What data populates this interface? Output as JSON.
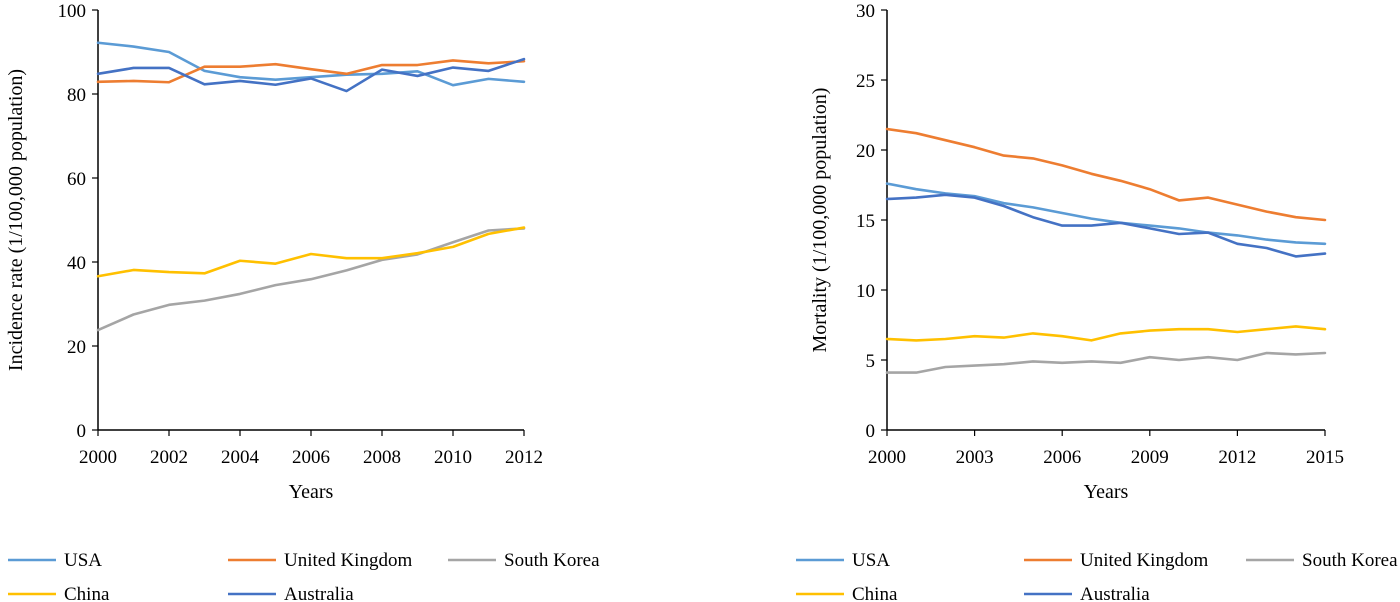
{
  "chart_data": [
    {
      "type": "line",
      "title": "",
      "xlabel": "Years",
      "ylabel": "Incidence rate (1/100,000 population)",
      "xlim": [
        2000,
        2012
      ],
      "ylim": [
        0,
        100
      ],
      "x_ticks": [
        "2000",
        "2002",
        "2004",
        "2006",
        "2008",
        "2010",
        "2012"
      ],
      "y_ticks": [
        "0",
        "20",
        "40",
        "60",
        "80",
        "100"
      ],
      "grid": false,
      "legend": "bottom",
      "x": [
        2000,
        2001,
        2002,
        2003,
        2004,
        2005,
        2006,
        2007,
        2008,
        2009,
        2010,
        2011,
        2012
      ],
      "series": [
        {
          "name": "USA",
          "color": "#5B9BD5",
          "values": [
            92.2,
            91.3,
            90.0,
            85.5,
            84.0,
            83.4,
            84.0,
            84.6,
            84.8,
            85.4,
            82.1,
            83.6,
            82.9
          ]
        },
        {
          "name": "United Kingdom",
          "color": "#ED7D31",
          "values": [
            82.9,
            83.1,
            82.8,
            86.5,
            86.5,
            87.1,
            85.9,
            84.8,
            86.9,
            86.9,
            88.0,
            87.3,
            87.8
          ]
        },
        {
          "name": "South Korea",
          "color": "#A5A5A5",
          "values": [
            23.8,
            27.5,
            29.8,
            30.8,
            32.4,
            34.5,
            35.9,
            38.0,
            40.5,
            41.8,
            44.7,
            47.5,
            48.0
          ]
        },
        {
          "name": "China",
          "color": "#FFC000",
          "values": [
            36.6,
            38.1,
            37.6,
            37.3,
            40.3,
            39.6,
            41.9,
            40.9,
            40.9,
            42.1,
            43.6,
            46.7,
            48.2
          ]
        },
        {
          "name": "Australia",
          "color": "#4472C4",
          "values": [
            84.8,
            86.2,
            86.2,
            82.3,
            83.1,
            82.2,
            83.7,
            80.7,
            85.8,
            84.3,
            86.3,
            85.5,
            88.3
          ]
        }
      ]
    },
    {
      "type": "line",
      "title": "",
      "xlabel": "Years",
      "ylabel": "Mortality  (1/100,000 population)",
      "xlim": [
        2000,
        2015
      ],
      "ylim": [
        0,
        30
      ],
      "x_ticks": [
        "2000",
        "2003",
        "2006",
        "2009",
        "2012",
        "2015"
      ],
      "y_ticks": [
        "0",
        "5",
        "10",
        "15",
        "20",
        "25",
        "30"
      ],
      "grid": false,
      "legend": "bottom",
      "x": [
        2000,
        2001,
        2002,
        2003,
        2004,
        2005,
        2006,
        2007,
        2008,
        2009,
        2010,
        2011,
        2012,
        2013,
        2014,
        2015
      ],
      "series": [
        {
          "name": "USA",
          "color": "#5B9BD5",
          "values": [
            17.6,
            17.2,
            16.9,
            16.7,
            16.2,
            15.9,
            15.5,
            15.1,
            14.8,
            14.6,
            14.4,
            14.1,
            13.9,
            13.6,
            13.4,
            13.3
          ]
        },
        {
          "name": "United Kingdom",
          "color": "#ED7D31",
          "values": [
            21.5,
            21.2,
            20.7,
            20.2,
            19.6,
            19.4,
            18.9,
            18.3,
            17.8,
            17.2,
            16.4,
            16.6,
            16.1,
            15.6,
            15.2,
            15.0
          ]
        },
        {
          "name": "South Korea",
          "color": "#A5A5A5",
          "values": [
            4.1,
            4.1,
            4.5,
            4.6,
            4.7,
            4.9,
            4.8,
            4.9,
            4.8,
            5.2,
            5.0,
            5.2,
            5.0,
            5.5,
            5.4,
            5.5
          ]
        },
        {
          "name": "China",
          "color": "#FFC000",
          "values": [
            6.5,
            6.4,
            6.5,
            6.7,
            6.6,
            6.9,
            6.7,
            6.4,
            6.9,
            7.1,
            7.2,
            7.2,
            7.0,
            7.2,
            7.4,
            7.2
          ]
        },
        {
          "name": "Australia",
          "color": "#4472C4",
          "values": [
            16.5,
            16.6,
            16.8,
            16.6,
            16.0,
            15.2,
            14.6,
            14.6,
            14.8,
            14.4,
            14.0,
            14.1,
            13.3,
            13.0,
            12.4,
            12.6
          ]
        }
      ]
    }
  ]
}
